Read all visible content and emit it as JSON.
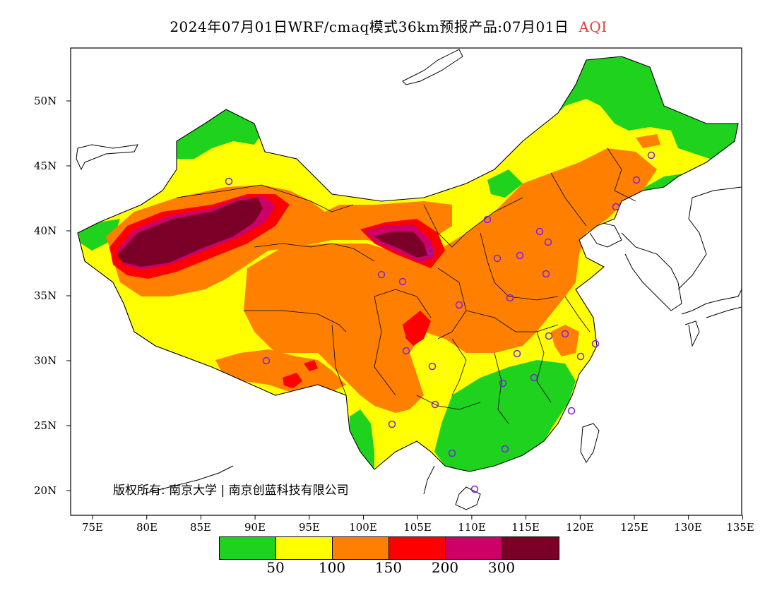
{
  "header": {
    "title": "2024年07月01日WRF/cmaq模式36km预报产品:07月01日",
    "variable": "AQI"
  },
  "map": {
    "lat_labels": [
      "50N",
      "45N",
      "40N",
      "35N",
      "30N",
      "25N",
      "20N"
    ],
    "lon_labels": [
      "75E",
      "80E",
      "85E",
      "90E",
      "95E",
      "100E",
      "105E",
      "110E",
      "115E",
      "120E",
      "125E",
      "130E",
      "135E"
    ],
    "lon_range": [
      73,
      135
    ],
    "lat_range": [
      18,
      54
    ],
    "copyright": "版权所有: 南京大学 | 南京创蓝科技有限公司"
  },
  "legend": {
    "colors": [
      "#1ed21e",
      "#ffff00",
      "#ff8000",
      "#ff0000",
      "#cc0066",
      "#7a0028"
    ],
    "tick_labels": [
      "50",
      "100",
      "150",
      "200",
      "300"
    ]
  },
  "colors": {
    "good": "#1ed21e",
    "moderate": "#ffff00",
    "sensitive": "#ff8000",
    "unhealthy": "#ff0000",
    "very_unhealthy": "#cc0066",
    "hazardous": "#7a0028",
    "station_marker": "#8020e0"
  }
}
